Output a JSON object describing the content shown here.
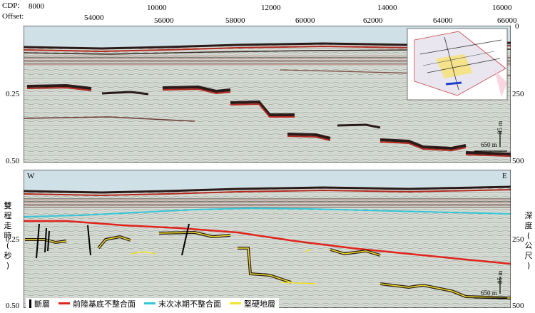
{
  "header": {
    "cdp_label": "CDP:",
    "offset_label": "Offset:",
    "cdp_ticks": [
      "8000",
      "10000",
      "12000",
      "14000",
      "16000"
    ],
    "offset_ticks": [
      "54000",
      "56000",
      "58000",
      "60000",
      "62000",
      "64000",
      "66000"
    ]
  },
  "panels": {
    "top": {
      "twt_ticks": [
        "0.25",
        "0.50"
      ],
      "depth_ticks": [
        "0",
        "250",
        "500"
      ],
      "scalebar_h": "650 m",
      "scalebar_v": "85 m"
    },
    "bottom": {
      "left_dir": "W",
      "right_dir": "E",
      "twt_ticks": [
        "0.25",
        "0.50"
      ],
      "depth_ticks": [
        "250",
        "500"
      ],
      "scalebar_h": "650 m",
      "scalebar_v": "85 m",
      "left_axis_title": "雙\n程\n走\n時\n(\n秒\n)",
      "right_axis_title": "深\n度\n(\n公\n尺\n)"
    }
  },
  "legend": [
    {
      "label": "斷層",
      "color": "#000000",
      "kind": "vertical"
    },
    {
      "label": "前陸基底不整合面",
      "color": "#e0231b",
      "kind": "line"
    },
    {
      "label": "末次冰期不整合面",
      "color": "#33c6d6",
      "kind": "line"
    },
    {
      "label": "堅硬地層",
      "color": "#f2e22a",
      "kind": "line"
    }
  ],
  "colors": {
    "seismic_bg": "#d8ddd6",
    "reflector": "#b32b22",
    "reflector_dark": "#2a1a18",
    "unconformity_red": "#e0231b",
    "unconformity_cyan": "#33c6d6",
    "hard_layer": "#f2e22a",
    "inset_land": "#f4e38a"
  }
}
